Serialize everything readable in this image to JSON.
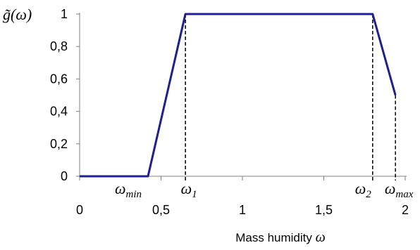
{
  "chart_data": {
    "type": "line",
    "xlabel": "Mass humidity",
    "xlabel_symbol": "ω",
    "ylabel": "g̃(ω)",
    "xlim": [
      0,
      2
    ],
    "ylim": [
      0,
      1
    ],
    "x_ticks": [
      "0",
      "0,5",
      "1",
      "1,5",
      "2"
    ],
    "y_ticks": [
      "0",
      "0,2",
      "0,4",
      "0,6",
      "0,8",
      "1"
    ],
    "line_color": "#1f1f8f",
    "series": [
      {
        "x": [
          0,
          0.42,
          0.65,
          1.8,
          1.94
        ],
        "y": [
          0,
          0,
          1,
          1,
          0.5
        ]
      }
    ],
    "markers": [
      {
        "label": "ω",
        "sub": "min",
        "x": 0.42,
        "vline": false
      },
      {
        "label": "ω",
        "sub": "1",
        "x": 0.65,
        "vline": true,
        "y": 1
      },
      {
        "label": "ω",
        "sub": "2",
        "x": 1.8,
        "vline": true,
        "y": 1
      },
      {
        "label": "ω",
        "sub": "max",
        "x": 1.94,
        "vline": true,
        "y": 0.5
      }
    ]
  }
}
